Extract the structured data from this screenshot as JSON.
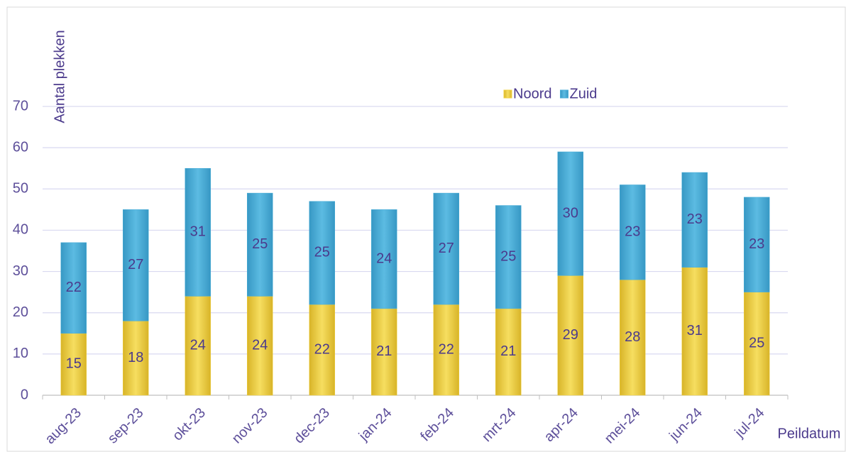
{
  "chart_data": {
    "type": "stacked-bar",
    "y_axis_label": "Aantal plekken",
    "x_axis_label": "Peildatum",
    "categories": [
      "aug-23",
      "sep-23",
      "okt-23",
      "nov-23",
      "dec-23",
      "jan-24",
      "feb-24",
      "mrt-24",
      "apr-24",
      "mei-24",
      "jun-24",
      "jul-24"
    ],
    "series": [
      {
        "name": "Noord",
        "color": "#f0d040",
        "values": [
          15,
          18,
          24,
          24,
          22,
          21,
          22,
          21,
          29,
          28,
          31,
          25
        ]
      },
      {
        "name": "Zuid",
        "color": "#4aaed8",
        "values": [
          22,
          27,
          31,
          25,
          25,
          24,
          27,
          25,
          30,
          23,
          23,
          23
        ]
      }
    ],
    "ylim": [
      0,
      70
    ],
    "yticks": [
      0,
      10,
      20,
      30,
      40,
      50,
      60,
      70
    ],
    "grid": true,
    "legend": "top-right"
  }
}
